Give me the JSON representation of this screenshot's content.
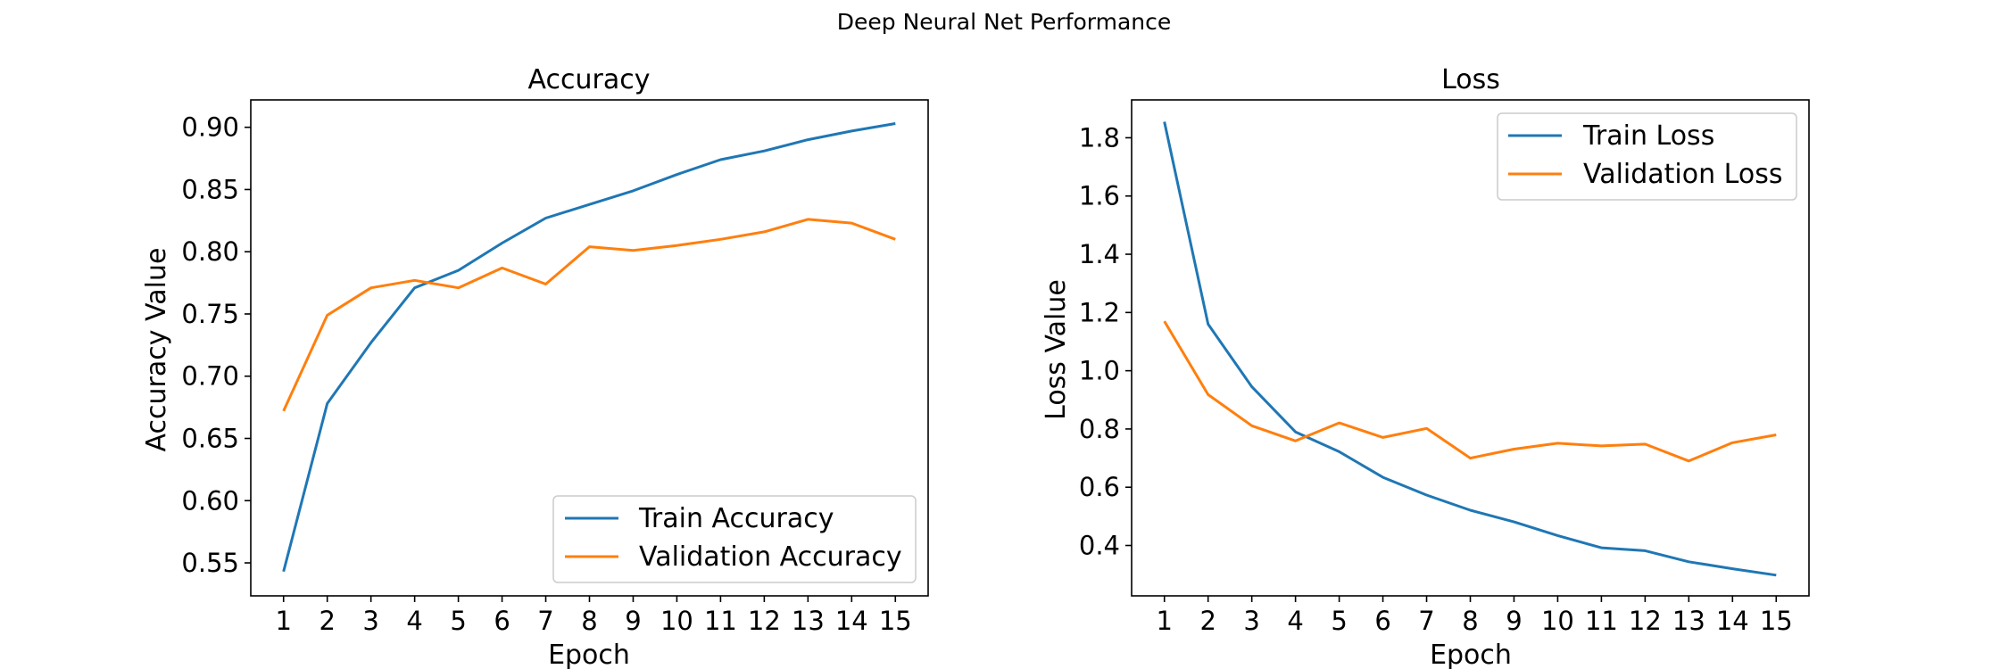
{
  "figure_title": "Deep Neural Net Performance",
  "colors": {
    "train": "#1f77b4",
    "validation": "#ff7f0e"
  },
  "chart_data": [
    {
      "type": "line",
      "title": "Accuracy",
      "xlabel": "Epoch",
      "ylabel": "Accuracy Value",
      "x": [
        1,
        2,
        3,
        4,
        5,
        6,
        7,
        8,
        9,
        10,
        11,
        12,
        13,
        14,
        15
      ],
      "xlim": [
        0.25,
        15.75
      ],
      "ylim": [
        0.5235,
        0.922
      ],
      "yticks": [
        "0.55",
        "0.60",
        "0.65",
        "0.70",
        "0.75",
        "0.80",
        "0.85",
        "0.90"
      ],
      "legend_position": "lower-right",
      "grid": false,
      "series": [
        {
          "name": "Train Accuracy",
          "color": "#1f77b4",
          "values": [
            0.543,
            0.678,
            0.727,
            0.771,
            0.785,
            0.807,
            0.827,
            0.838,
            0.849,
            0.862,
            0.874,
            0.881,
            0.89,
            0.897,
            0.903
          ]
        },
        {
          "name": "Validation Accuracy",
          "color": "#ff7f0e",
          "values": [
            0.672,
            0.749,
            0.771,
            0.777,
            0.771,
            0.787,
            0.774,
            0.804,
            0.801,
            0.805,
            0.81,
            0.816,
            0.826,
            0.823,
            0.81
          ]
        }
      ]
    },
    {
      "type": "line",
      "title": "Loss",
      "xlabel": "Epoch",
      "ylabel": "Loss Value",
      "x": [
        1,
        2,
        3,
        4,
        5,
        6,
        7,
        8,
        9,
        10,
        11,
        12,
        13,
        14,
        15
      ],
      "xlim": [
        0.25,
        15.75
      ],
      "ylim": [
        0.227,
        1.93
      ],
      "yticks": [
        "0.4",
        "0.6",
        "0.8",
        "1.0",
        "1.2",
        "1.4",
        "1.6",
        "1.8"
      ],
      "legend_position": "upper-right",
      "grid": false,
      "series": [
        {
          "name": "Train Loss",
          "color": "#1f77b4",
          "values": [
            1.855,
            1.16,
            0.945,
            0.79,
            0.722,
            0.634,
            0.573,
            0.521,
            0.481,
            0.434,
            0.392,
            0.382,
            0.344,
            0.32,
            0.298
          ]
        },
        {
          "name": "Validation Loss",
          "color": "#ff7f0e",
          "values": [
            1.17,
            0.918,
            0.811,
            0.759,
            0.821,
            0.771,
            0.802,
            0.7,
            0.731,
            0.751,
            0.742,
            0.748,
            0.69,
            0.753,
            0.78
          ]
        }
      ]
    }
  ]
}
